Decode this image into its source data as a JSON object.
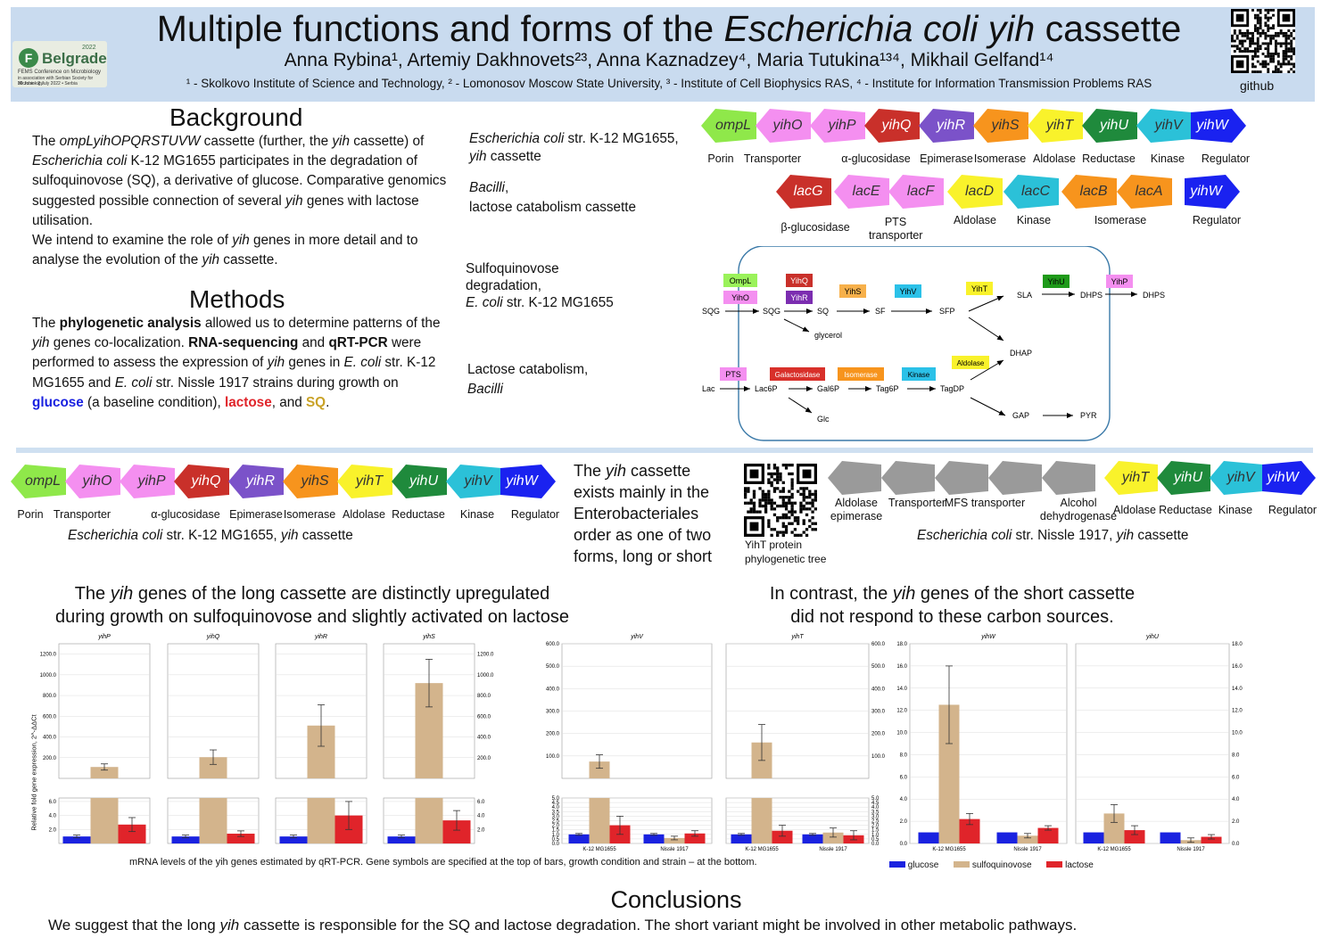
{
  "header": {
    "title_prefix": "Multiple functions and forms of the ",
    "title_italic": "Escherichia coli yih",
    "title_suffix": " cassette",
    "authors": "Anna Rybina¹, Artemiy Dakhnovets²³, Anna Kaznadzey⁴, Maria Tutukina¹³⁴, Mikhail Gelfand¹⁴",
    "affiliations": "¹ - Skolkovo Institute of Science and Technology, ² - Lomonosov Moscow State University, ³ - Institute of Cell Biophysics RAS,  ⁴ - Institute for Information Transmission Problems RAS",
    "github_label": "github",
    "logo": {
      "badge": "F",
      "city": "Belgrade",
      "year": "2022",
      "line1": "FEMS Conference on Microbiology",
      "line2": "in association with Serbian Society for Microbiology",
      "line3": "30 June - 2 July 2022 • Serbia"
    }
  },
  "background": {
    "title": "Background",
    "p1_a": "The ",
    "p1_b": "ompLyihOPQRSTUVW",
    "p1_c": " cassette (further, the ",
    "p1_d": "yih",
    "p1_e": " cassette) of ",
    "p1_f": "Escherichia coli",
    "p1_g": " K-12 MG1655 participates in the degradation of sulfoquinovose (SQ), a derivative of glucose. Comparative genomics suggested possible connection of several ",
    "p1_h": "yih",
    "p1_i": " genes with lactose utilisation.",
    "p2_a": "We intend to examine the role of ",
    "p2_b": "yih",
    "p2_c": " genes in more detail and to analyse the evolution of the ",
    "p2_d": "yih",
    "p2_e": " cassette."
  },
  "methods": {
    "title": "Methods",
    "t1": "The ",
    "t2": "phylogenetic analysis",
    "t3": " allowed us to determine patterns of the ",
    "t4": "yih",
    "t5": " genes co-localization. ",
    "t6": "RNA-sequencing",
    "t7": " and ",
    "t8": "qRT-PCR",
    "t9": " were performed to assess the expression of ",
    "t10": "yih",
    "t11": " genes in ",
    "t12": "E. coli",
    "t13": " str. K-12 MG1655 and ",
    "t14": "E. coli",
    "t15": " str. Nissle 1917 strains during growth on ",
    "t16": "glucose",
    "t17": " (a baseline condition), ",
    "t18": "lactose",
    "t19": ", and ",
    "t20": "SQ",
    "t21": "."
  },
  "labels_top": {
    "ecoli_a": "Escherichia coli",
    "ecoli_b": " str. K-12 MG1655,",
    "ecoli_c": "yih",
    "ecoli_d": " cassette",
    "bacilli_a": "Bacilli",
    "bacilli_b": ",",
    "bacilli_c": "lactose catabolism cassette",
    "sq_1": "Sulfoquinovose",
    "sq_2": "degradation,",
    "sq_3a": "E. coli",
    "sq_3b": " str. K-12 MG1655",
    "lac_1": "Lactose catabolism,",
    "lac_2": "Bacilli"
  },
  "cassette_ecoli": {
    "genes": [
      "ompL",
      "yihO",
      "yihP",
      "yihQ",
      "yihR",
      "yihS",
      "yihT",
      "yihU",
      "yihV",
      "yihW"
    ],
    "colors": [
      "#8fe84a",
      "#f48ff0",
      "#f48ff0",
      "#c9302a",
      "#7b52c9",
      "#f7941d",
      "#f9f22b",
      "#1f8a3c",
      "#2bc1d8",
      "#1a22f0"
    ],
    "directions": [
      "left",
      "left",
      "left",
      "left",
      "left",
      "left",
      "left",
      "left",
      "left",
      "right"
    ],
    "functions": [
      "Porin",
      "Transporter",
      "α-glucosidase",
      "Epimerase",
      "Isomerase",
      "Aldolase",
      "Reductase",
      "Kinase",
      "Regulator"
    ]
  },
  "cassette_bacilli": {
    "genes": [
      "lacG",
      "lacE",
      "lacF",
      "lacD",
      "lacC",
      "lacB",
      "lacA",
      "yihW"
    ],
    "colors": [
      "#c9302a",
      "#f48ff0",
      "#f48ff0",
      "#f9f22b",
      "#2bc1d8",
      "#f7941d",
      "#f7941d",
      "#1a22f0"
    ],
    "functions": [
      "β-glucosidase",
      "PTS transporter",
      "Aldolase",
      "Kinase",
      "Isomerase",
      "Regulator"
    ]
  },
  "pathway": {
    "boxes": [
      "OmpL",
      "YihO",
      "YihQ",
      "YihR",
      "YihS",
      "YihV",
      "YihT",
      "YihU",
      "YihP",
      "PTS",
      "Galactosidase",
      "Isomerase",
      "Kinase",
      "Aldolase"
    ],
    "metabolites": [
      "SQG",
      "SQG",
      "SQ",
      "SF",
      "SFP",
      "SLA",
      "DHPS",
      "DHPS",
      "glycerol",
      "DHAP",
      "Lac",
      "Lac6P",
      "Gal6P",
      "Tag6P",
      "TagDP",
      "Glc",
      "GAP",
      "PYR"
    ]
  },
  "middle": {
    "statement_a": "The ",
    "statement_b": "yih",
    "statement_c": " cassette exists mainly in the Enterobacteriales order as one of two forms, long or short",
    "qr_caption_1": "YihT protein",
    "qr_caption_2": "phylogenetic tree",
    "left_caption_a": "Escherichia coli",
    "left_caption_b": " str. K-12 MG1655, ",
    "left_caption_c": "yih",
    "left_caption_d": " cassette",
    "nissle_genes_grey": 5,
    "nissle_grey_labels": [
      "Aldolase epimerase",
      "Transporter",
      "MFS transporter",
      "Alcohol dehydrogenase"
    ],
    "nissle_genes": [
      "yihT",
      "yihU",
      "yihV",
      "yihW"
    ],
    "nissle_functions": [
      "Aldolase",
      "Reductase",
      "Kinase",
      "Regulator"
    ],
    "nissle_caption_a": "Escherichia coli",
    "nissle_caption_b": " str. Nissle 1917, ",
    "nissle_caption_c": "yih",
    "nissle_caption_d": " cassette"
  },
  "results": {
    "long_a": "The ",
    "long_b": "yih",
    "long_c": " genes of the long cassette are distinctly upregulated",
    "long_d": "during growth on sulfoquinovose and slightly activated on lactose",
    "short_a": "In contrast, the ",
    "short_b": "yih",
    "short_c": " genes of the short cassette",
    "short_d": "did not respond to these carbon sources.",
    "caption": "mRNA levels of the yih genes estimated by qRT-PCR. Gene symbols are specified at the top of bars, growth condition and strain – at the bottom.",
    "legend": [
      "glucose",
      "sulfoquinovose",
      "lactose"
    ],
    "legend_colors": [
      "#1a22e0",
      "#d3b48c",
      "#e0242a"
    ],
    "ylabel": "Relative fold gene expression, 2^-ΔΔCt"
  },
  "chart_data": [
    {
      "type": "bar",
      "title": "yihP",
      "series": [
        {
          "name": "glucose",
          "values": [
            1.0
          ]
        },
        {
          "name": "sulfoquinovose",
          "values": [
            110
          ]
        },
        {
          "name": "lactose",
          "values": [
            2.7
          ]
        }
      ],
      "errors": [
        [
          0.2
        ],
        [
          30
        ],
        [
          1.0
        ]
      ]
    },
    {
      "type": "bar",
      "title": "yihQ",
      "series": [
        {
          "name": "glucose",
          "values": [
            1.0
          ]
        },
        {
          "name": "sulfoquinovose",
          "values": [
            205
          ]
        },
        {
          "name": "lactose",
          "values": [
            1.4
          ]
        }
      ],
      "errors": [
        [
          0.2
        ],
        [
          70
        ],
        [
          0.4
        ]
      ]
    },
    {
      "type": "bar",
      "title": "yihR",
      "series": [
        {
          "name": "glucose",
          "values": [
            1.0
          ]
        },
        {
          "name": "sulfoquinovose",
          "values": [
            510
          ]
        },
        {
          "name": "lactose",
          "values": [
            4.0
          ]
        }
      ],
      "errors": [
        [
          0.2
        ],
        [
          200
        ],
        [
          2.0
        ]
      ]
    },
    {
      "type": "bar",
      "title": "yihS",
      "series": [
        {
          "name": "glucose",
          "values": [
            1.0
          ]
        },
        {
          "name": "sulfoquinovose",
          "values": [
            920
          ]
        },
        {
          "name": "lactose",
          "values": [
            3.3
          ]
        }
      ],
      "errors": [
        [
          0.2
        ],
        [
          230
        ],
        [
          1.4
        ]
      ]
    },
    {
      "type": "bar",
      "title": "yihV",
      "categories": [
        "K-12 MG1655",
        "Nissle 1917"
      ],
      "series": [
        {
          "name": "glucose",
          "values": [
            1.0,
            1.0
          ]
        },
        {
          "name": "sulfoquinovose",
          "values": [
            75,
            0.6
          ]
        },
        {
          "name": "lactose",
          "values": [
            2.0,
            1.1
          ]
        }
      ],
      "errors": [
        [
          0.1,
          0.1
        ],
        [
          30,
          0.2
        ],
        [
          1.0,
          0.3
        ]
      ]
    },
    {
      "type": "bar",
      "title": "yihT",
      "categories": [
        "K-12 MG1655",
        "Nissle 1917"
      ],
      "series": [
        {
          "name": "glucose",
          "values": [
            1.0,
            1.0
          ]
        },
        {
          "name": "sulfoquinovose",
          "values": [
            160,
            1.2
          ]
        },
        {
          "name": "lactose",
          "values": [
            1.4,
            0.9
          ]
        }
      ],
      "errors": [
        [
          0.1,
          0.1
        ],
        [
          80,
          0.5
        ],
        [
          0.6,
          0.5
        ]
      ]
    },
    {
      "type": "bar",
      "title": "yihW",
      "categories": [
        "K-12 MG1655",
        "Nissle 1917"
      ],
      "series": [
        {
          "name": "glucose",
          "values": [
            1.0,
            1.0
          ]
        },
        {
          "name": "sulfoquinovose",
          "values": [
            12.5,
            0.7
          ]
        },
        {
          "name": "lactose",
          "values": [
            2.2,
            1.4
          ]
        }
      ],
      "errors": [
        [
          0.1,
          0.1
        ],
        [
          3.5,
          0.2
        ],
        [
          0.5,
          0.2
        ]
      ]
    },
    {
      "type": "bar",
      "title": "yihU",
      "categories": [
        "K-12 MG1655",
        "Nissle 1917"
      ],
      "series": [
        {
          "name": "glucose",
          "values": [
            1.0,
            1.0
          ]
        },
        {
          "name": "sulfoquinovose",
          "values": [
            2.7,
            0.3
          ]
        },
        {
          "name": "lactose",
          "values": [
            1.2,
            0.6
          ]
        }
      ],
      "errors": [
        [
          0.1,
          0.1
        ],
        [
          0.8,
          0.2
        ],
        [
          0.4,
          0.2
        ]
      ]
    }
  ],
  "conclusions": {
    "title": "Conclusions",
    "a": "We suggest that the long ",
    "b": "yih",
    "c": " cassette is responsible for the SQ and lactose degradation. The short variant might be involved in other metabolic pathways."
  }
}
